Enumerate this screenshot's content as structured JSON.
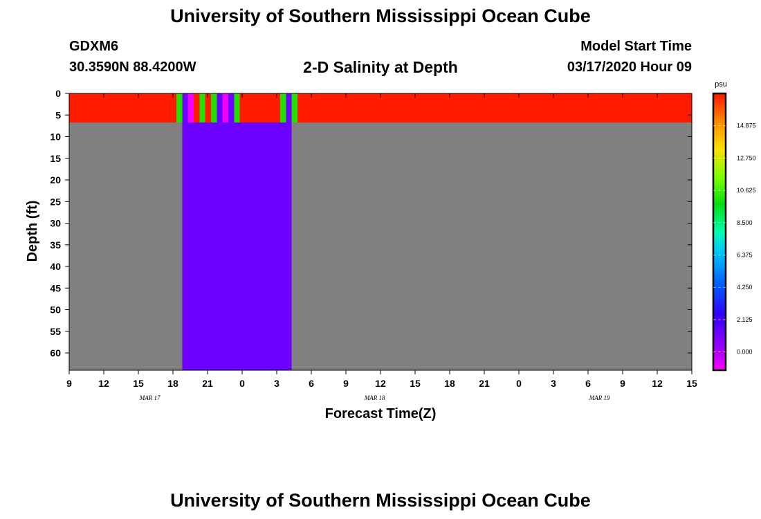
{
  "header": {
    "title": "University of Southern Mississippi Ocean Cube",
    "station": "GDXM6",
    "location": "30.3590N 88.4200W",
    "subtitle": "2-D Salinity at Depth",
    "model_start_label": "Model Start Time",
    "model_start_value": "03/17/2020 Hour 09"
  },
  "footer": {
    "title": "University of Southern Mississippi Ocean Cube"
  },
  "chart_data": {
    "type": "heatmap",
    "xlabel": "Forecast Time(Z)",
    "ylabel": "Depth (ft)",
    "x_tick_labels": [
      "9",
      "12",
      "15",
      "18",
      "21",
      "0",
      "3",
      "6",
      "9",
      "12",
      "15",
      "18",
      "21",
      "0",
      "3",
      "6",
      "9",
      "12",
      "15"
    ],
    "x_range_hours": [
      0,
      54
    ],
    "month_labels": [
      {
        "label": "MAR 17",
        "hour": 7
      },
      {
        "label": "MAR 18",
        "hour": 26.5
      },
      {
        "label": "MAR 19",
        "hour": 46
      }
    ],
    "y_tick_labels": [
      "0",
      "5",
      "10",
      "15",
      "20",
      "25",
      "30",
      "35",
      "40",
      "45",
      "50",
      "55",
      "60"
    ],
    "y_range_ft": [
      0,
      64
    ],
    "colorbar": {
      "unit": "psu",
      "min": -1.2,
      "max": 17.0,
      "tick_labels": [
        "0.000",
        "2.125",
        "4.250",
        "6.375",
        "8.500",
        "10.625",
        "12.750",
        "14.875"
      ],
      "tick_values": [
        0.0,
        2.125,
        4.25,
        6.375,
        8.5,
        10.625,
        12.75,
        14.875
      ]
    },
    "colors": {
      "red": "#ff1a00",
      "green": "#22e000",
      "magenta": "#f000ff",
      "violet": "#6c00ff",
      "nodata": "#808080"
    },
    "cells": [
      {
        "x0": 0,
        "x1": 9.3,
        "y0": 0,
        "y1": 6.7,
        "color": "red"
      },
      {
        "x0": 9.3,
        "x1": 9.8,
        "y0": 0,
        "y1": 6.7,
        "color": "green"
      },
      {
        "x0": 9.8,
        "x1": 10.3,
        "y0": 0,
        "y1": 6.7,
        "color": "violet"
      },
      {
        "x0": 10.3,
        "x1": 10.8,
        "y0": 0,
        "y1": 6.7,
        "color": "magenta"
      },
      {
        "x0": 10.8,
        "x1": 11.3,
        "y0": 0,
        "y1": 6.7,
        "color": "red"
      },
      {
        "x0": 11.3,
        "x1": 11.8,
        "y0": 0,
        "y1": 6.7,
        "color": "green"
      },
      {
        "x0": 11.8,
        "x1": 12.3,
        "y0": 0,
        "y1": 6.7,
        "color": "red"
      },
      {
        "x0": 12.3,
        "x1": 12.8,
        "y0": 0,
        "y1": 6.7,
        "color": "green"
      },
      {
        "x0": 12.8,
        "x1": 13.3,
        "y0": 0,
        "y1": 6.7,
        "color": "violet"
      },
      {
        "x0": 13.3,
        "x1": 13.8,
        "y0": 0,
        "y1": 6.7,
        "color": "magenta"
      },
      {
        "x0": 13.8,
        "x1": 14.3,
        "y0": 0,
        "y1": 6.7,
        "color": "violet"
      },
      {
        "x0": 14.3,
        "x1": 14.8,
        "y0": 0,
        "y1": 6.7,
        "color": "green"
      },
      {
        "x0": 14.8,
        "x1": 18.3,
        "y0": 0,
        "y1": 6.7,
        "color": "red"
      },
      {
        "x0": 18.3,
        "x1": 18.8,
        "y0": 0,
        "y1": 6.7,
        "color": "green"
      },
      {
        "x0": 18.8,
        "x1": 19.3,
        "y0": 0,
        "y1": 6.7,
        "color": "violet"
      },
      {
        "x0": 19.3,
        "x1": 19.8,
        "y0": 0,
        "y1": 6.7,
        "color": "green"
      },
      {
        "x0": 19.8,
        "x1": 54,
        "y0": 0,
        "y1": 6.7,
        "color": "red"
      },
      {
        "x0": 0,
        "x1": 9.8,
        "y0": 6.7,
        "y1": 64,
        "color": "nodata"
      },
      {
        "x0": 9.8,
        "x1": 19.3,
        "y0": 6.7,
        "y1": 64,
        "color": "violet"
      },
      {
        "x0": 19.3,
        "x1": 54,
        "y0": 6.7,
        "y1": 64,
        "color": "nodata"
      }
    ]
  }
}
